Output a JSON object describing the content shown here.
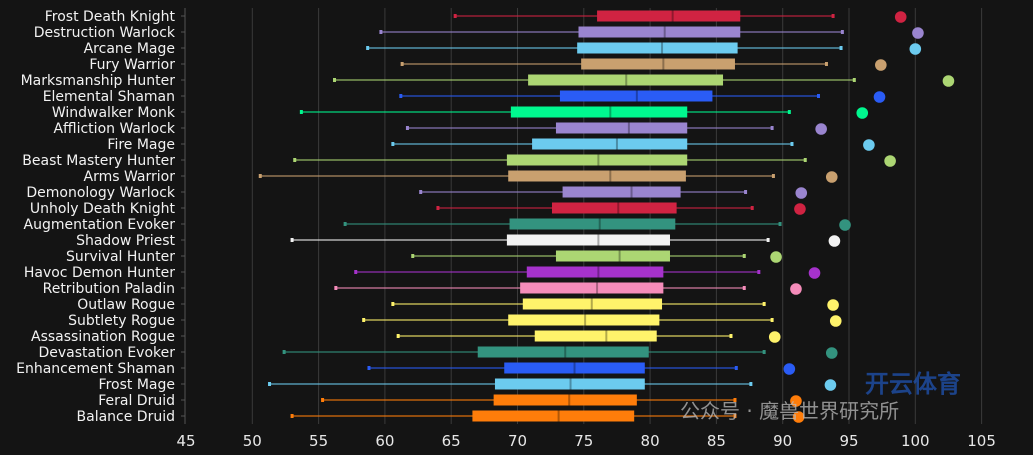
{
  "chart_data": {
    "type": "boxplot",
    "title": "",
    "xlabel": "",
    "ylabel": "",
    "xlim": [
      45,
      106
    ],
    "xticks": [
      45,
      50,
      55,
      60,
      65,
      70,
      75,
      80,
      85,
      90,
      95,
      100,
      105
    ],
    "grid": true,
    "legend": "none",
    "series": [
      {
        "name": "Frost Death Knight",
        "color": "#d02342",
        "min": 65.3,
        "q1": 76.0,
        "median": 81.7,
        "q3": 86.8,
        "max": 93.8,
        "point": 98.9
      },
      {
        "name": "Destruction Warlock",
        "color": "#9a85cf",
        "min": 59.7,
        "q1": 74.6,
        "median": 81.1,
        "q3": 86.8,
        "max": 94.5,
        "point": 100.2
      },
      {
        "name": "Arcane Mage",
        "color": "#6ccbef",
        "min": 58.7,
        "q1": 74.5,
        "median": 80.9,
        "q3": 86.6,
        "max": 94.4,
        "point": 100.0
      },
      {
        "name": "Fury Warrior",
        "color": "#c9a06f",
        "min": 61.3,
        "q1": 74.8,
        "median": 81.0,
        "q3": 86.4,
        "max": 93.3,
        "point": 97.4
      },
      {
        "name": "Marksmanship Hunter",
        "color": "#acd673",
        "min": 56.2,
        "q1": 70.8,
        "median": 78.2,
        "q3": 85.5,
        "max": 95.4,
        "point": 102.5
      },
      {
        "name": "Elemental Shaman",
        "color": "#2a5cf5",
        "min": 61.2,
        "q1": 73.2,
        "median": 79.0,
        "q3": 84.7,
        "max": 92.7,
        "point": 97.3
      },
      {
        "name": "Windwalker Monk",
        "color": "#00f88f",
        "min": 53.7,
        "q1": 69.5,
        "median": 77.0,
        "q3": 82.8,
        "max": 90.5,
        "point": 96.0
      },
      {
        "name": "Affliction Warlock",
        "color": "#9a85cf",
        "min": 61.7,
        "q1": 72.9,
        "median": 78.4,
        "q3": 82.8,
        "max": 89.2,
        "point": 92.9
      },
      {
        "name": "Fire Mage",
        "color": "#6ccbef",
        "min": 60.6,
        "q1": 71.1,
        "median": 77.5,
        "q3": 82.8,
        "max": 90.7,
        "point": 96.5
      },
      {
        "name": "Beast Mastery Hunter",
        "color": "#acd673",
        "min": 53.2,
        "q1": 69.2,
        "median": 76.1,
        "q3": 82.8,
        "max": 91.7,
        "point": 98.1
      },
      {
        "name": "Arms Warrior",
        "color": "#c9a06f",
        "min": 50.6,
        "q1": 69.3,
        "median": 77.0,
        "q3": 82.7,
        "max": 89.3,
        "point": 93.7
      },
      {
        "name": "Demonology Warlock",
        "color": "#9a85cf",
        "min": 62.7,
        "q1": 73.4,
        "median": 78.6,
        "q3": 82.3,
        "max": 87.2,
        "point": 91.4
      },
      {
        "name": "Unholy Death Knight",
        "color": "#d02342",
        "min": 64.0,
        "q1": 72.6,
        "median": 77.6,
        "q3": 82.0,
        "max": 87.7,
        "point": 91.3
      },
      {
        "name": "Augmentation Evoker",
        "color": "#33937f",
        "min": 57.0,
        "q1": 69.4,
        "median": 76.2,
        "q3": 81.9,
        "max": 89.8,
        "point": 94.7
      },
      {
        "name": "Shadow Priest",
        "color": "#f2f2f2",
        "min": 53.0,
        "q1": 69.2,
        "median": 76.1,
        "q3": 81.5,
        "max": 88.9,
        "point": 93.9
      },
      {
        "name": "Survival Hunter",
        "color": "#acd673",
        "min": 62.1,
        "q1": 72.9,
        "median": 77.7,
        "q3": 81.5,
        "max": 87.1,
        "point": 89.5
      },
      {
        "name": "Havoc Demon Hunter",
        "color": "#a632cc",
        "min": 57.8,
        "q1": 70.7,
        "median": 76.1,
        "q3": 81.0,
        "max": 88.2,
        "point": 92.4
      },
      {
        "name": "Retribution Paladin",
        "color": "#f58cba",
        "min": 56.3,
        "q1": 70.2,
        "median": 76.0,
        "q3": 81.0,
        "max": 87.1,
        "point": 91.0
      },
      {
        "name": "Outlaw Rogue",
        "color": "#fff36b",
        "min": 60.6,
        "q1": 70.4,
        "median": 75.6,
        "q3": 80.9,
        "max": 88.6,
        "point": 93.8
      },
      {
        "name": "Subtlety Rogue",
        "color": "#fff36b",
        "min": 58.4,
        "q1": 69.3,
        "median": 75.1,
        "q3": 80.7,
        "max": 89.2,
        "point": 94.0
      },
      {
        "name": "Assassination Rogue",
        "color": "#fff36b",
        "min": 61.0,
        "q1": 71.3,
        "median": 76.7,
        "q3": 80.5,
        "max": 86.1,
        "point": 89.4
      },
      {
        "name": "Devastation Evoker",
        "color": "#33937f",
        "min": 52.4,
        "q1": 67.0,
        "median": 73.6,
        "q3": 79.9,
        "max": 88.6,
        "point": 93.7
      },
      {
        "name": "Enhancement Shaman",
        "color": "#2a5cf5",
        "min": 58.8,
        "q1": 69.0,
        "median": 74.3,
        "q3": 79.6,
        "max": 86.5,
        "point": 90.5
      },
      {
        "name": "Frost Mage",
        "color": "#6ccbef",
        "min": 51.3,
        "q1": 68.3,
        "median": 74.0,
        "q3": 79.6,
        "max": 87.6,
        "point": 93.6
      },
      {
        "name": "Feral Druid",
        "color": "#ff7d0a",
        "min": 55.3,
        "q1": 68.2,
        "median": 73.9,
        "q3": 79.0,
        "max": 86.4,
        "point": 91.0
      },
      {
        "name": "Balance Druid",
        "color": "#ff7d0a",
        "min": 53.0,
        "q1": 66.6,
        "median": 73.1,
        "q3": 78.8,
        "max": 86.4,
        "point": 91.2
      }
    ]
  },
  "watermark": {
    "text": "公众号 · 魔兽世界研究所",
    "brand": "开云体育"
  },
  "colors": {
    "background": "#141414",
    "grid": "#3a3a3a"
  }
}
